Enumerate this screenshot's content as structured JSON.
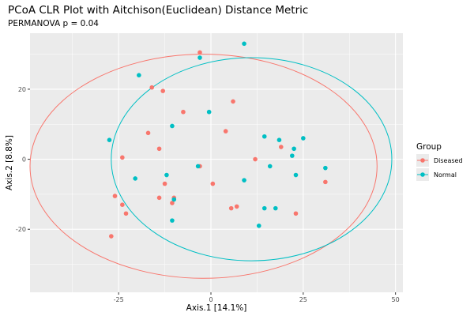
{
  "chart_data": {
    "type": "scatter",
    "title": "PCoA CLR Plot with Aitchison(Euclidean) Distance Metric",
    "subtitle": "PERMANOVA p = 0.04",
    "xlabel": "Axis.1  [14.1%]",
    "ylabel": "Axis.2  [8.8%]",
    "xlim": [
      -49,
      52
    ],
    "ylim": [
      -38,
      36
    ],
    "x_ticks": [
      -25,
      0,
      25,
      50
    ],
    "x_tick_labels": [
      "-25",
      "0",
      "25",
      "50"
    ],
    "y_ticks": [
      -20,
      0,
      20
    ],
    "y_tick_labels": [
      "-20",
      "0",
      "20"
    ],
    "grid": true,
    "legend": {
      "title": "Group",
      "position": "right"
    },
    "series": [
      {
        "name": "Diseased",
        "color": "#F8766D",
        "points": [
          [
            -3,
            30.5
          ],
          [
            -16,
            20.5
          ],
          [
            -13,
            19.5
          ],
          [
            6,
            16.5
          ],
          [
            -7.5,
            13.5
          ],
          [
            -17,
            7.5
          ],
          [
            4,
            8
          ],
          [
            19,
            3.5
          ],
          [
            -14,
            3
          ],
          [
            -24,
            0.5
          ],
          [
            12,
            0
          ],
          [
            -3,
            -2
          ],
          [
            0.5,
            -7
          ],
          [
            -12.5,
            -7
          ],
          [
            -26,
            -10.5
          ],
          [
            -14,
            -11
          ],
          [
            -10,
            -11
          ],
          [
            -10.5,
            -12.5
          ],
          [
            -24,
            -13
          ],
          [
            -23,
            -15.5
          ],
          [
            5.5,
            -14
          ],
          [
            7,
            -13.5
          ],
          [
            23,
            -15.5
          ],
          [
            -27,
            -22
          ],
          [
            31,
            -6.5
          ]
        ],
        "ellipse": {
          "cx": -2,
          "cy": -2,
          "rx": 47,
          "ry": 32
        }
      },
      {
        "name": "Normal",
        "color": "#00BFC4",
        "points": [
          [
            9,
            33
          ],
          [
            -3,
            29
          ],
          [
            -19.5,
            24
          ],
          [
            -0.5,
            13.5
          ],
          [
            -10.5,
            9.5
          ],
          [
            -27.5,
            5.5
          ],
          [
            14.5,
            6.5
          ],
          [
            18.5,
            5.5
          ],
          [
            25,
            6
          ],
          [
            22.5,
            3
          ],
          [
            22,
            1
          ],
          [
            16,
            -2
          ],
          [
            31,
            -2.5
          ],
          [
            23,
            -4.5
          ],
          [
            -12,
            -4.5
          ],
          [
            -20.5,
            -5.5
          ],
          [
            -3.5,
            -2
          ],
          [
            9,
            -6
          ],
          [
            -10,
            -11.5
          ],
          [
            14.5,
            -14
          ],
          [
            17.5,
            -14
          ],
          [
            -10.5,
            -17.5
          ],
          [
            13,
            -19
          ]
        ],
        "ellipse": {
          "cx": 11,
          "cy": 0,
          "rx": 38,
          "ry": 29
        }
      }
    ]
  }
}
